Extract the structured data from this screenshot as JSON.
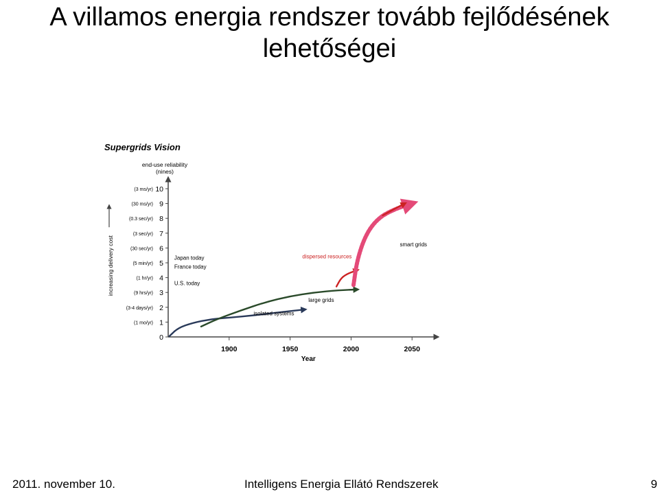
{
  "slide": {
    "title_line1": "A villamos energia rendszer tovább fejlődésének",
    "title_line2": "lehetőségei",
    "footer_date": "2011. november 10.",
    "footer_center": "Intelligens  Energia Ellátó Rendszerek",
    "page_number": "9"
  },
  "chart_data": {
    "type": "line",
    "title": "Supergrids Vision",
    "ylabel": "end-use reliability (nines)",
    "xlabel": "Year",
    "side_label": "increasing delivery cost",
    "xlim": [
      1850,
      2060
    ],
    "ylim": [
      0,
      10
    ],
    "x_ticks": [
      1900,
      1950,
      2000,
      2050
    ],
    "y_ticks": [
      0,
      1,
      2,
      3,
      4,
      5,
      6,
      7,
      8,
      9,
      10
    ],
    "y_tick_notes": [
      "",
      "(1 mo/yr)",
      "(3-4 days/yr)",
      "(9 hrs/yr)",
      "(1 hr/yr)",
      "(5 min/yr)",
      "(30 sec/yr)",
      "(3 sec/yr)",
      "(0.3 sec/yr)",
      "(30 ms/yr)",
      "(3 ms/yr)"
    ],
    "series": [
      {
        "name": "isolated systems",
        "color": "#2a3a5a",
        "x": [
          1851,
          1858,
          1870,
          1885,
          1900,
          1920,
          1940,
          1962
        ],
        "y": [
          0.05,
          0.6,
          0.95,
          1.2,
          1.3,
          1.45,
          1.65,
          1.85
        ]
      },
      {
        "name": "large grids",
        "color": "#2a4a2a",
        "x": [
          1877,
          1890,
          1910,
          1930,
          1950,
          1970,
          1990,
          2005
        ],
        "y": [
          0.7,
          1.2,
          1.8,
          2.35,
          2.75,
          3.0,
          3.15,
          3.2
        ]
      },
      {
        "name": "dispersed resources",
        "color": "#cc2222",
        "x": [
          1988,
          1992,
          1998,
          2005
        ],
        "y": [
          3.4,
          4.0,
          4.3,
          4.5
        ]
      },
      {
        "name": "smart grids",
        "color": "#e44a78",
        "x": [
          2002,
          2005,
          2012,
          2022,
          2035,
          2050
        ],
        "y": [
          3.5,
          5.2,
          6.9,
          8.0,
          8.6,
          9.0
        ]
      },
      {
        "name": "",
        "color": "#cc2222",
        "x": [
          2026,
          2037,
          2044
        ],
        "y": [
          8.2,
          8.7,
          9.0
        ]
      }
    ],
    "annotations": [
      {
        "text": "Japan today",
        "x": 1855,
        "y": 5.2
      },
      {
        "text": "France today",
        "x": 1855,
        "y": 4.6
      },
      {
        "text": "U.S. today",
        "x": 1855,
        "y": 3.5
      },
      {
        "text": "isolated systems",
        "x": 1920,
        "y": 1.45
      },
      {
        "text": "large grids",
        "x": 1965,
        "y": 2.35
      },
      {
        "text": "dispersed resources",
        "x": 1960,
        "y": 5.3
      },
      {
        "text": "smart grids",
        "x": 2040,
        "y": 6.1
      }
    ]
  }
}
